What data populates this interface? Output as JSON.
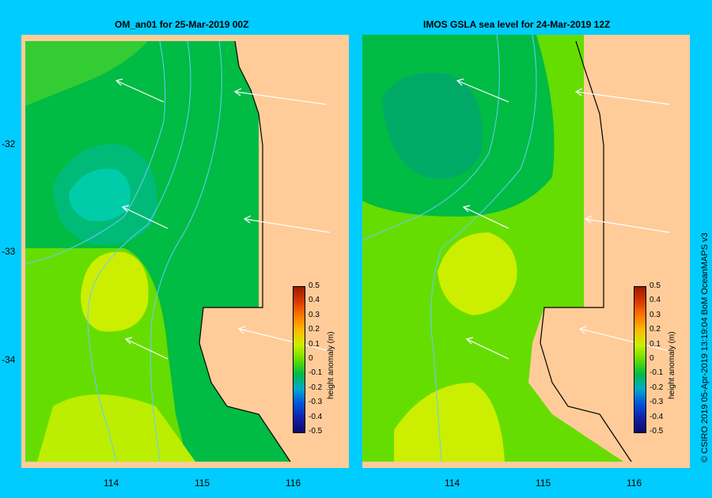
{
  "panels": [
    {
      "id": "left",
      "title": "OM_an01  for 25-Mar-2019 00Z"
    },
    {
      "id": "right",
      "title": "IMOS  GSLA sea level   for 24-Mar-2019 12Z"
    }
  ],
  "lat_ticks": [
    "-32",
    "-33",
    "-34"
  ],
  "lon_ticks": [
    "114",
    "115",
    "116"
  ],
  "colorbar": {
    "axis_label": "height anomaly (m)",
    "ticks": [
      "0.5",
      "0.4",
      "0.3",
      "0.2",
      "0.1",
      "0",
      "-0.1",
      "-0.2",
      "-0.3",
      "-0.4",
      "-0.5"
    ],
    "colors": [
      "#9a1a00",
      "#d83a00",
      "#ff7a00",
      "#ffbb00",
      "#ccee00",
      "#66dd00",
      "#00bb44",
      "#00aacc",
      "#0055dd",
      "#1020a8",
      "#0a0a6a"
    ]
  },
  "credit": "© CSIRO 2019    05-Apr-2019 13:19:04 BoM OceanMAPS v3",
  "colors": {
    "background": "#00ccff",
    "land": "#ffcc99",
    "bathymetry": "#66ccff",
    "coast": "#000000",
    "arrow": "#ffffff"
  }
}
